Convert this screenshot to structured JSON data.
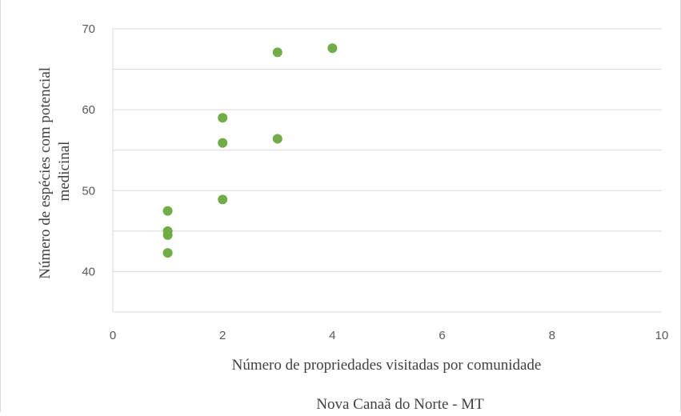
{
  "chart_data": {
    "type": "scatter",
    "title": "",
    "xlabel": "Número de propriedades visitadas por comunidade",
    "ylabel_lines": [
      "Número de espécies com potencial",
      "medicinal"
    ],
    "xlim": [
      0,
      10
    ],
    "ylim": [
      35,
      70
    ],
    "xticks": [
      0,
      2,
      4,
      6,
      8,
      10
    ],
    "yticks": [
      40,
      50,
      60,
      70
    ],
    "grid": true,
    "legend": "none",
    "series": [
      {
        "color": "#70ad47",
        "points": [
          {
            "x": 1,
            "y": 47.5
          },
          {
            "x": 1,
            "y": 45
          },
          {
            "x": 1,
            "y": 44.5
          },
          {
            "x": 1,
            "y": 42.3
          },
          {
            "x": 2,
            "y": 59
          },
          {
            "x": 2,
            "y": 55.9
          },
          {
            "x": 2,
            "y": 48.9
          },
          {
            "x": 3,
            "y": 67.1
          },
          {
            "x": 3,
            "y": 56.4
          },
          {
            "x": 4,
            "y": 67.6
          }
        ]
      }
    ],
    "caption": "Nova Canaã do Norte - MT"
  }
}
